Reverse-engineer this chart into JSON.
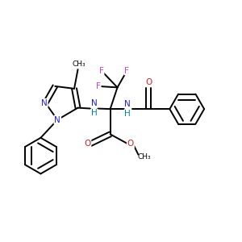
{
  "bg_color": "#ffffff",
  "bond_color": "#000000",
  "bond_width": 1.4,
  "atom_colors": {
    "C": "#000000",
    "N": "#2222cc",
    "O": "#cc2222",
    "F": "#cc44cc",
    "H": "#008888"
  },
  "font_size": 7.5,
  "figsize": [
    3.0,
    3.0
  ],
  "dpi": 100,
  "xlim": [
    0,
    10
  ],
  "ylim": [
    0,
    10
  ]
}
